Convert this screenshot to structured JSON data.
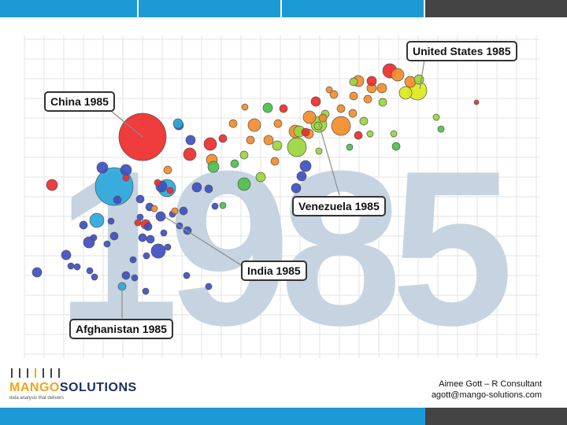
{
  "header_bar": {
    "colors": [
      "#1c9ad6",
      "#1c9ad6",
      "#1c9ad6",
      "#444444"
    ]
  },
  "footer_bar": {
    "colors": [
      "#1c9ad6",
      "#444444"
    ]
  },
  "chart_data": {
    "type": "scatter",
    "title": "",
    "watermark_year": "1985",
    "xlabel": "",
    "ylabel": "",
    "grid": true,
    "annotations": [
      {
        "label": "United States 1985"
      },
      {
        "label": "China 1985"
      },
      {
        "label": "Venezuela 1985"
      },
      {
        "label": "India 1985"
      },
      {
        "label": "Afghanistan 1985"
      }
    ]
  },
  "footer": {
    "logo_mango": "MANGO",
    "logo_solutions": "SOLUTIONS",
    "tagline": "data analysis that delivers",
    "credit_name": "Aimee Gott – R Consultant",
    "credit_email": "agott@mango-solutions.com"
  }
}
